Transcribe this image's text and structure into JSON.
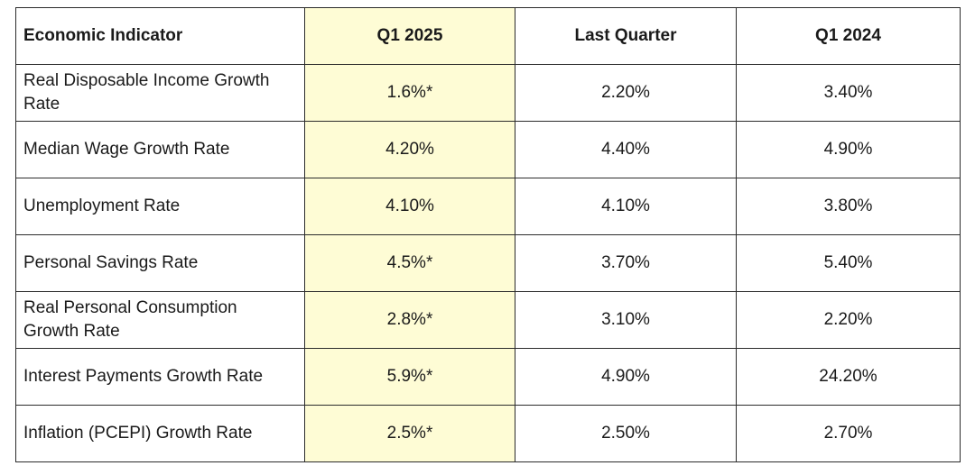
{
  "table": {
    "headers": [
      "Economic Indicator",
      "Q1 2025",
      "Last Quarter",
      "Q1 2024"
    ],
    "highlight_color": "#fefcd5",
    "rows": [
      {
        "label": "Real Disposable Income Growth Rate",
        "q1_2025": "1.6%*",
        "last_quarter": "2.20%",
        "q1_2024": "3.40%"
      },
      {
        "label": "Median Wage Growth Rate",
        "q1_2025": "4.20%",
        "last_quarter": "4.40%",
        "q1_2024": "4.90%"
      },
      {
        "label": "Unemployment Rate",
        "q1_2025": "4.10%",
        "last_quarter": "4.10%",
        "q1_2024": "3.80%"
      },
      {
        "label": "Personal Savings Rate",
        "q1_2025": "4.5%*",
        "last_quarter": "3.70%",
        "q1_2024": "5.40%"
      },
      {
        "label": "Real Personal Consumption Growth Rate",
        "q1_2025": "2.8%*",
        "last_quarter": "3.10%",
        "q1_2024": "2.20%"
      },
      {
        "label": "Interest Payments Growth Rate",
        "q1_2025": "5.9%*",
        "last_quarter": "4.90%",
        "q1_2024": "24.20%"
      },
      {
        "label": "Inflation (PCEPI) Growth Rate",
        "q1_2025": "2.5%*",
        "last_quarter": "2.50%",
        "q1_2024": "2.70%"
      }
    ]
  }
}
